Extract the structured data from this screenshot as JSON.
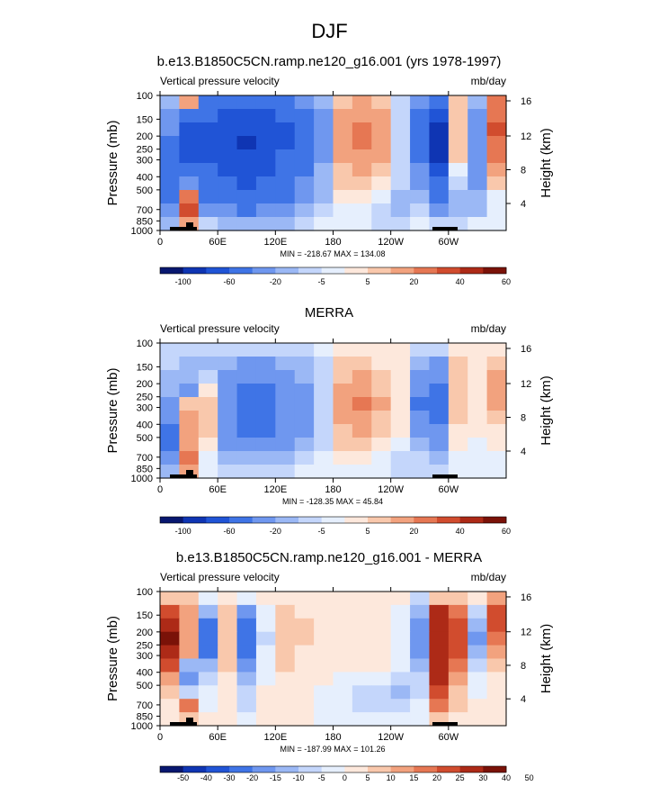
{
  "page_title": "DJF",
  "chart_data": [
    {
      "type": "heatmap",
      "title": "b.e13.B1850C5CN.ramp.ne120_g16.001 (yrs 1978-1997)",
      "left_label": "Vertical pressure velocity",
      "right_label": "mb/day",
      "ylabel": "Pressure (mb)",
      "y2label": "Height (km)",
      "x_ticks": [
        "0",
        "60E",
        "120E",
        "180",
        "120W",
        "60W"
      ],
      "y_ticks": [
        "100",
        "150",
        "200",
        "250",
        "300",
        "400",
        "500",
        "700",
        "850",
        "1000"
      ],
      "y2_ticks": [
        "16",
        "12",
        "8",
        "4"
      ],
      "stats": "MIN = -218.67   MAX = 134.08",
      "colorbar_ticks": [
        "-100",
        "-60",
        "-20",
        "-5",
        "5",
        "20",
        "40",
        "60"
      ],
      "colorbar_colors": [
        "#08176f",
        "#0f35b3",
        "#2054d6",
        "#3f74e6",
        "#6f97ef",
        "#9bb8f5",
        "#c4d6fb",
        "#e6effd",
        "#fde8dc",
        "#f9c8ac",
        "#f2a27e",
        "#e67753",
        "#d14c2e",
        "#ad2a17",
        "#7a1208"
      ],
      "field": {
        "x_columns": 18,
        "y_rows": 10,
        "values": [
          [
            -8,
            15,
            -25,
            -30,
            -35,
            -30,
            -25,
            -20,
            -8,
            8,
            10,
            6,
            -4,
            -15,
            -30,
            5,
            -10,
            20
          ],
          [
            -15,
            -40,
            -40,
            -45,
            -50,
            -45,
            -38,
            -30,
            -12,
            12,
            15,
            10,
            -5,
            -25,
            -60,
            8,
            -15,
            25
          ],
          [
            -20,
            -55,
            -45,
            -55,
            -60,
            -55,
            -45,
            -35,
            -15,
            15,
            20,
            12,
            -5,
            -30,
            -80,
            5,
            -20,
            30
          ],
          [
            -25,
            -50,
            -48,
            -55,
            -65,
            -55,
            -45,
            -35,
            -15,
            15,
            20,
            12,
            -5,
            -30,
            -90,
            5,
            -20,
            25
          ],
          [
            -30,
            -45,
            -45,
            -50,
            -60,
            -50,
            -40,
            -30,
            -12,
            12,
            18,
            10,
            -4,
            -25,
            -80,
            5,
            -18,
            20
          ],
          [
            -35,
            -35,
            -40,
            -45,
            -55,
            -45,
            -35,
            -25,
            -10,
            8,
            12,
            6,
            -4,
            -20,
            -60,
            0,
            -15,
            10
          ],
          [
            -40,
            -20,
            -35,
            -40,
            -50,
            -40,
            -30,
            -20,
            -8,
            5,
            8,
            3,
            -5,
            -15,
            -40,
            -5,
            -12,
            5
          ],
          [
            -30,
            20,
            -25,
            -30,
            -35,
            -30,
            -22,
            -15,
            -6,
            3,
            4,
            0,
            -8,
            -10,
            -25,
            -10,
            -10,
            0
          ],
          [
            -20,
            30,
            -15,
            -20,
            -25,
            -20,
            -15,
            -10,
            -4,
            0,
            0,
            -5,
            -10,
            -5,
            -15,
            -8,
            -6,
            0
          ],
          [
            -10,
            10,
            -5,
            -8,
            -10,
            -8,
            -6,
            -4,
            -2,
            0,
            0,
            -3,
            -5,
            -2,
            -5,
            -4,
            -2,
            0
          ]
        ]
      }
    },
    {
      "type": "heatmap",
      "title": "MERRA",
      "left_label": "Vertical pressure velocity",
      "right_label": "mb/day",
      "ylabel": "Pressure (mb)",
      "y2label": "Height (km)",
      "x_ticks": [
        "0",
        "60E",
        "120E",
        "180",
        "120W",
        "60W"
      ],
      "y_ticks": [
        "100",
        "150",
        "200",
        "250",
        "300",
        "400",
        "500",
        "700",
        "850",
        "1000"
      ],
      "y2_ticks": [
        "16",
        "12",
        "8",
        "4"
      ],
      "stats": "MIN = -128.35   MAX = 45.84",
      "colorbar_ticks": [
        "-100",
        "-60",
        "-20",
        "-5",
        "5",
        "20",
        "40",
        "60"
      ],
      "colorbar_colors": [
        "#08176f",
        "#0f35b3",
        "#2054d6",
        "#3f74e6",
        "#6f97ef",
        "#9bb8f5",
        "#c4d6fb",
        "#e6effd",
        "#fde8dc",
        "#f9c8ac",
        "#f2a27e",
        "#e67753",
        "#d14c2e",
        "#ad2a17",
        "#7a1208"
      ],
      "field": {
        "x_columns": 18,
        "y_rows": 10,
        "values": [
          [
            -3,
            -4,
            -4,
            -4,
            -5,
            -5,
            -4,
            -3,
            -2,
            3,
            3,
            2,
            2,
            -3,
            -5,
            4,
            2,
            3
          ],
          [
            -5,
            -8,
            -8,
            -10,
            -12,
            -12,
            -10,
            -8,
            -3,
            5,
            6,
            4,
            3,
            -8,
            -12,
            6,
            3,
            6
          ],
          [
            -8,
            -10,
            -4,
            -15,
            -20,
            -20,
            -15,
            -10,
            -4,
            8,
            10,
            6,
            4,
            -15,
            -20,
            8,
            4,
            10
          ],
          [
            -10,
            -12,
            3,
            -18,
            -25,
            -22,
            -18,
            -12,
            -5,
            10,
            14,
            8,
            4,
            -20,
            -25,
            8,
            4,
            12
          ],
          [
            -15,
            8,
            6,
            -20,
            -28,
            -25,
            -20,
            -14,
            -5,
            12,
            22,
            10,
            4,
            -25,
            -28,
            8,
            4,
            10
          ],
          [
            -20,
            10,
            5,
            -20,
            -30,
            -25,
            -20,
            -14,
            -5,
            10,
            18,
            8,
            3,
            -20,
            -25,
            6,
            3,
            6
          ],
          [
            -25,
            12,
            5,
            -18,
            -25,
            -22,
            -18,
            -12,
            -4,
            8,
            14,
            6,
            2,
            -15,
            -20,
            4,
            2,
            4
          ],
          [
            -30,
            14,
            3,
            -12,
            -18,
            -15,
            -12,
            -8,
            -3,
            5,
            8,
            4,
            0,
            -10,
            -15,
            2,
            0,
            2
          ],
          [
            -20,
            20,
            0,
            -6,
            -8,
            -8,
            -6,
            -4,
            -2,
            2,
            3,
            0,
            -5,
            -5,
            -8,
            0,
            0,
            0
          ],
          [
            -10,
            10,
            0,
            -3,
            -4,
            -4,
            -3,
            -2,
            -1,
            0,
            0,
            0,
            -3,
            -3,
            -4,
            0,
            0,
            0
          ]
        ]
      }
    },
    {
      "type": "heatmap",
      "title": "b.e13.B1850C5CN.ramp.ne120_g16.001 - MERRA",
      "left_label": "Vertical pressure velocity",
      "right_label": "mb/day",
      "ylabel": "Pressure (mb)",
      "y2label": "Height (km)",
      "x_ticks": [
        "0",
        "60E",
        "120E",
        "180",
        "120W",
        "60W"
      ],
      "y_ticks": [
        "100",
        "150",
        "200",
        "250",
        "300",
        "400",
        "500",
        "700",
        "850",
        "1000"
      ],
      "y2_ticks": [
        "16",
        "12",
        "8",
        "4"
      ],
      "stats": "MIN = -187.99   MAX = 101.26",
      "colorbar_ticks": [
        "-50",
        "-40",
        "-30",
        "-20",
        "-15",
        "-10",
        "-5",
        "0",
        "5",
        "10",
        "15",
        "20",
        "25",
        "30",
        "40",
        "50"
      ],
      "colorbar_colors": [
        "#08176f",
        "#0f35b3",
        "#2054d6",
        "#3f74e6",
        "#6f97ef",
        "#9bb8f5",
        "#c4d6fb",
        "#e6effd",
        "#fde8dc",
        "#f9c8ac",
        "#f2a27e",
        "#e67753",
        "#d14c2e",
        "#ad2a17",
        "#7a1208"
      ],
      "field": {
        "x_columns": 18,
        "y_rows": 10,
        "values": [
          [
            5,
            8,
            -3,
            3,
            -5,
            2,
            3,
            2,
            2,
            2,
            3,
            2,
            2,
            -6,
            5,
            6,
            3,
            10
          ],
          [
            20,
            10,
            -15,
            5,
            -20,
            -3,
            5,
            4,
            3,
            3,
            4,
            2,
            -2,
            -15,
            30,
            15,
            -10,
            20
          ],
          [
            35,
            10,
            -30,
            8,
            -25,
            -5,
            8,
            5,
            2,
            2,
            4,
            2,
            -2,
            -20,
            35,
            20,
            -15,
            20
          ],
          [
            40,
            10,
            -30,
            8,
            -30,
            -6,
            8,
            5,
            2,
            2,
            3,
            2,
            -2,
            -20,
            38,
            22,
            -18,
            15
          ],
          [
            30,
            10,
            -25,
            6,
            -25,
            -5,
            6,
            4,
            2,
            2,
            2,
            2,
            -3,
            -18,
            35,
            20,
            -12,
            10
          ],
          [
            20,
            -15,
            -15,
            5,
            -20,
            -4,
            5,
            4,
            2,
            0,
            0,
            0,
            -5,
            -15,
            30,
            15,
            -8,
            5
          ],
          [
            10,
            -20,
            -10,
            3,
            -15,
            -2,
            3,
            3,
            0,
            -3,
            -5,
            -5,
            -8,
            -10,
            25,
            10,
            -5,
            2
          ],
          [
            5,
            -10,
            -5,
            2,
            -10,
            0,
            2,
            2,
            -2,
            -5,
            -8,
            -10,
            -12,
            -8,
            20,
            8,
            -2,
            0
          ],
          [
            0,
            15,
            -3,
            0,
            -6,
            0,
            0,
            0,
            -2,
            -4,
            -6,
            -8,
            -8,
            -5,
            15,
            5,
            0,
            0
          ],
          [
            0,
            5,
            0,
            0,
            -3,
            0,
            0,
            0,
            -1,
            -2,
            -3,
            -3,
            -3,
            -2,
            5,
            2,
            0,
            0
          ]
        ]
      }
    }
  ]
}
